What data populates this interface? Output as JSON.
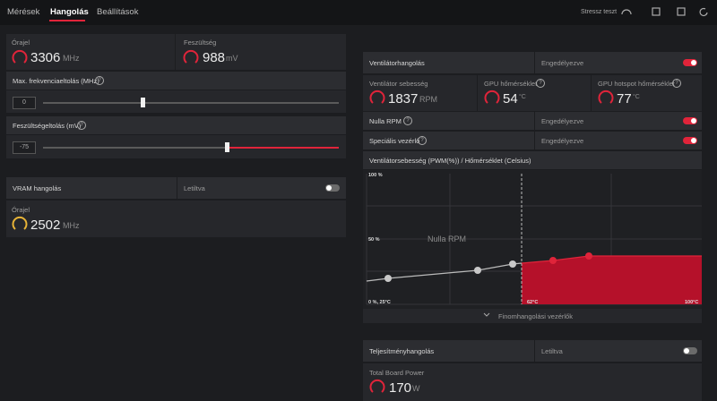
{
  "nav": {
    "tabs": [
      "Mérések",
      "Hangolás",
      "Beállítások"
    ],
    "stress_test": "Stressz teszt"
  },
  "gpu_tuning": {
    "clock": {
      "label": "Órajel",
      "value": 3306,
      "unit": "MHz"
    },
    "voltage": {
      "label": "Feszültség",
      "value": 988,
      "unit": "mV"
    },
    "max_freq_offset": {
      "label": "Max. frekvenciaeltolás (MHz)",
      "value": 0
    },
    "voltage_offset": {
      "label": "Feszültségeltolás (mV)",
      "value": -75
    }
  },
  "vram_tuning": {
    "title": "VRAM hangolás",
    "status": "Letiltva",
    "clock": {
      "label": "Órajel",
      "value": 2502,
      "unit": "MHz"
    }
  },
  "fan_tuning": {
    "title": "Ventilátorhangolás",
    "status": "Engedélyezve",
    "fan_speed": {
      "label": "Ventilátor sebesség",
      "value": 1837,
      "unit": "RPM"
    },
    "gpu_temp": {
      "label": "GPU hőmérséklet",
      "value": 54,
      "unit": "°C"
    },
    "hotspot_temp": {
      "label": "GPU hotspot hőmérséklet",
      "value": 77,
      "unit": "°C"
    },
    "zero_rpm": {
      "label": "Nulla RPM",
      "status": "Engedélyezve"
    },
    "custom_control": {
      "label": "Speciális vezérlő",
      "status": "Engedélyezve"
    },
    "chart": {
      "title": "Ventilátorsebesség (PWM(%)) / Hőmérséklet (Celsius)",
      "labels": [
        "100 %",
        "50 %",
        "0 %, 25°C",
        "62°C",
        "100°C"
      ],
      "zone_label": "Nulla RPM"
    },
    "fine_tuning": "Finomhangolási vezérlők"
  },
  "power_tuning": {
    "title": "Teljesítményhangolás",
    "status": "Letiltva",
    "board_power": {
      "label": "Total Board Power",
      "value": 170,
      "unit": "W"
    }
  }
}
